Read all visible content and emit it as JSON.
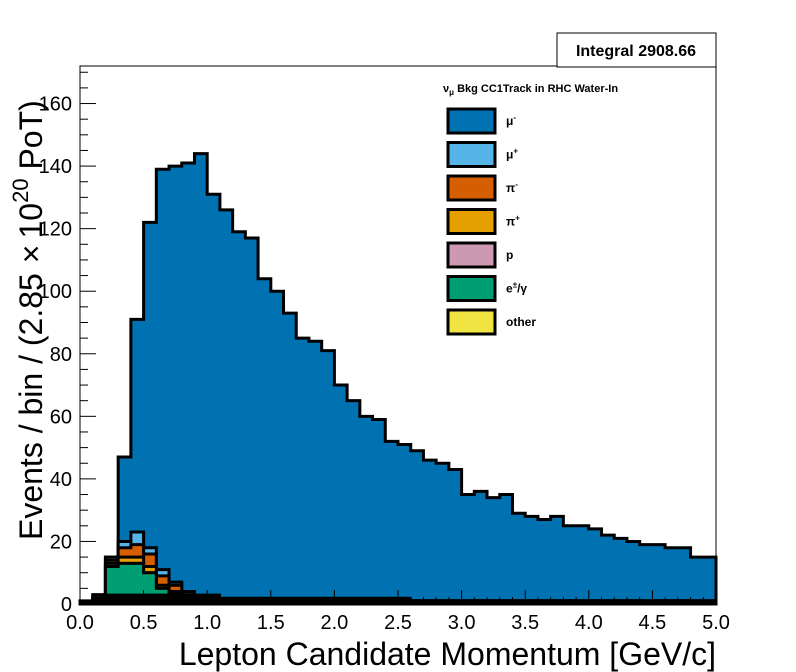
{
  "chart_data": {
    "type": "histogram",
    "stacked": true,
    "xlabel": "Lepton Candidate Momentum [GeV/c]",
    "ylabel": "Events / bin / (2.85 × 10²⁰ PoT)",
    "ylabel_parts": {
      "pre": "Events / bin / (2.85",
      "times": "×",
      "base": "10",
      "exp": "20",
      "post": " PoT)"
    },
    "xlim": [
      0,
      5
    ],
    "ylim": [
      0,
      172
    ],
    "xticks": [
      "0.0",
      "0.5",
      "1.0",
      "1.5",
      "2.0",
      "2.5",
      "3.0",
      "3.5",
      "4.0",
      "4.5",
      "5.0"
    ],
    "yticks": [
      "0",
      "20",
      "40",
      "60",
      "80",
      "100",
      "120",
      "140",
      "160"
    ],
    "integral_label": "Integral 2908.66",
    "legend_title": {
      "nu": "ν",
      "sub": "μ",
      "rest": " Bkg CC1Track in RHC Water-In"
    },
    "legend_position": "top-right",
    "bin_edges": [
      0.0,
      0.1,
      0.2,
      0.3,
      0.4,
      0.5,
      0.6,
      0.7,
      0.8,
      0.9,
      1.0,
      1.1,
      1.2,
      1.3,
      1.4,
      1.5,
      1.6,
      1.7,
      1.8,
      1.9,
      2.0,
      2.1,
      2.2,
      2.3,
      2.4,
      2.5,
      2.6,
      2.7,
      2.8,
      2.9,
      3.0,
      3.1,
      3.2,
      3.3,
      3.4,
      3.5,
      3.6,
      3.7,
      3.8,
      3.9,
      4.0,
      4.1,
      4.2,
      4.3,
      4.4,
      4.5,
      4.6,
      4.7,
      4.8,
      4.9,
      5.0
    ],
    "total_values": [
      1,
      3,
      16,
      47,
      91,
      122,
      139,
      140,
      141,
      144,
      131,
      126,
      119,
      117,
      104,
      100,
      93,
      85,
      84,
      81,
      70,
      65,
      60,
      59,
      52,
      51,
      49,
      46,
      45,
      43,
      35,
      36,
      34,
      35,
      29,
      28,
      27,
      28,
      25,
      25,
      24,
      22,
      21,
      20,
      19,
      19,
      18,
      18,
      15,
      15
    ],
    "series": [
      {
        "name": "μ⁻",
        "label_base": "μ",
        "label_sup": "-",
        "color": "#0072b2",
        "values": [
          1,
          1,
          0,
          27,
          68,
          104,
          128,
          133,
          137,
          142,
          130,
          125,
          118,
          116,
          103,
          99,
          92,
          84,
          83,
          80,
          69,
          64,
          59,
          58,
          51,
          50,
          48,
          45,
          44,
          42,
          34,
          35,
          33,
          34,
          28,
          27,
          26,
          27,
          24,
          24,
          23,
          21,
          20,
          19,
          18,
          18,
          17,
          17,
          14,
          14
        ]
      },
      {
        "name": "μ⁺",
        "label_base": "μ",
        "label_sup": "+",
        "color": "#56b4e9",
        "values": [
          0,
          0,
          1,
          2,
          4,
          2,
          2,
          1,
          1,
          0,
          0,
          0,
          0,
          0,
          0,
          0,
          0,
          0,
          0,
          0,
          0,
          0,
          0,
          0,
          0,
          0,
          0,
          0,
          0,
          0,
          0,
          0,
          0,
          0,
          0,
          0,
          0,
          0,
          0,
          0,
          0,
          0,
          0,
          0,
          0,
          0,
          0,
          0,
          0,
          0
        ]
      },
      {
        "name": "π⁻",
        "label_base": "π",
        "label_sup": "-",
        "color": "#d55e00",
        "values": [
          0,
          1,
          1,
          3,
          4,
          4,
          3,
          2,
          1,
          1,
          1,
          1,
          0,
          0,
          0,
          0,
          0,
          0,
          0,
          0,
          0,
          0,
          0,
          0,
          0,
          0,
          0,
          0,
          0,
          0,
          0,
          0,
          0,
          0,
          0,
          0,
          0,
          0,
          0,
          0,
          0,
          0,
          0,
          0,
          0,
          0,
          0,
          0,
          0,
          0
        ]
      },
      {
        "name": "π⁺",
        "label_base": "π",
        "label_sup": "+",
        "color": "#e69f00",
        "values": [
          0,
          0,
          1,
          2,
          2,
          2,
          1,
          1,
          0,
          0,
          0,
          0,
          0,
          0,
          0,
          0,
          0,
          0,
          0,
          0,
          0,
          0,
          0,
          0,
          0,
          0,
          0,
          0,
          0,
          0,
          0,
          0,
          0,
          0,
          0,
          0,
          0,
          0,
          0,
          0,
          0,
          0,
          0,
          0,
          0,
          0,
          0,
          0,
          0,
          0
        ]
      },
      {
        "name": "p",
        "label_base": "p",
        "label_sup": "",
        "color": "#cc99b2",
        "values": [
          0,
          0,
          0,
          0,
          0,
          0,
          0,
          0,
          0,
          0,
          0,
          0,
          0,
          0,
          0,
          0,
          0,
          0,
          0,
          0,
          0,
          0,
          0,
          0,
          0,
          0,
          0,
          0,
          0,
          0,
          0,
          0,
          0,
          0,
          0,
          0,
          0,
          0,
          0,
          0,
          0,
          0,
          0,
          0,
          0,
          0,
          0,
          0,
          0,
          0
        ]
      },
      {
        "name": "e±/γ",
        "label_base": "e",
        "label_sup": "±",
        "label_post": "/γ",
        "color": "#009e73",
        "values": [
          0,
          1,
          12,
          13,
          13,
          10,
          5,
          3,
          2,
          1,
          0,
          0,
          1,
          1,
          1,
          1,
          1,
          1,
          1,
          1,
          1,
          1,
          1,
          1,
          1,
          1,
          1,
          1,
          1,
          1,
          1,
          1,
          1,
          1,
          1,
          1,
          1,
          1,
          1,
          1,
          1,
          1,
          1,
          1,
          1,
          1,
          1,
          1,
          1,
          1
        ]
      },
      {
        "name": "other",
        "label_base": "other",
        "label_sup": "",
        "color": "#f0e442",
        "values": [
          0,
          0,
          0,
          0,
          0,
          0,
          0,
          0,
          0,
          0,
          0,
          0,
          0,
          0,
          0,
          0,
          0,
          0,
          0,
          0,
          0,
          0,
          0,
          0,
          0,
          0,
          0,
          0,
          0,
          0,
          0,
          0,
          0,
          0,
          0,
          0,
          0,
          0,
          0,
          0,
          0,
          0,
          0,
          0,
          0,
          0,
          0,
          0,
          0,
          0
        ]
      }
    ],
    "baseline_band": {
      "color": "#000000",
      "values": [
        1,
        2,
        3,
        3,
        3,
        3,
        3,
        3,
        3,
        3,
        3,
        2,
        2,
        2,
        2,
        2,
        2,
        2,
        2,
        2,
        2,
        2,
        2,
        2,
        2,
        2,
        1,
        1,
        1,
        1,
        1,
        1,
        1,
        1,
        1,
        1,
        1,
        1,
        1,
        1,
        1,
        1,
        1,
        1,
        1,
        1,
        1,
        1,
        1,
        1
      ]
    }
  }
}
